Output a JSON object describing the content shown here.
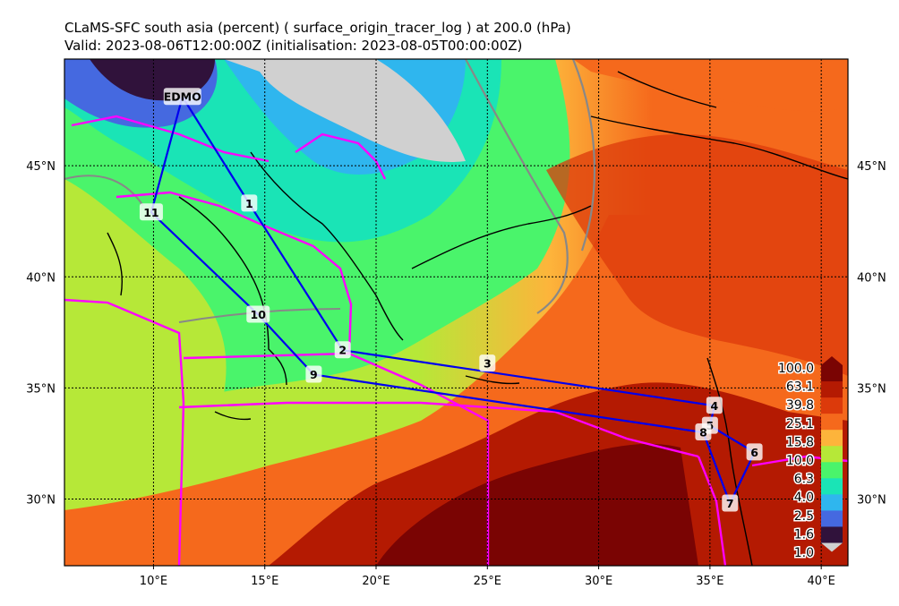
{
  "title_line1": "CLaMS-SFC south asia (percent) ( surface_origin_tracer_log ) at 200.0 (hPa)",
  "title_line2": "Valid: 2023-08-06T12:00:00Z (initialisation: 2023-08-05T00:00:00Z)",
  "x_ticks": [
    {
      "lon": 10,
      "label": "10°E"
    },
    {
      "lon": 15,
      "label": "15°E"
    },
    {
      "lon": 20,
      "label": "20°E"
    },
    {
      "lon": 25,
      "label": "25°E"
    },
    {
      "lon": 30,
      "label": "30°E"
    },
    {
      "lon": 35,
      "label": "35°E"
    },
    {
      "lon": 40,
      "label": "40°E"
    }
  ],
  "y_ticks": [
    {
      "lat": 45,
      "label": "45°N"
    },
    {
      "lat": 40,
      "label": "40°N"
    },
    {
      "lat": 35,
      "label": "35°N"
    },
    {
      "lat": 30,
      "label": "30°N"
    }
  ],
  "colorbar": {
    "levels": [
      "100.0",
      "63.1",
      "39.8",
      "25.1",
      "15.8",
      "10.0",
      "6.3",
      "4.0",
      "2.5",
      "1.6",
      "1.0"
    ],
    "colors": [
      "#7a0403",
      "#b41a02",
      "#dc3a0b",
      "#f5691c",
      "#fdb43b",
      "#b6e838",
      "#4af46b",
      "#1ae4b6",
      "#2fb6ee",
      "#4569e0",
      "#30123b"
    ],
    "under_color": "#d0d0d0"
  },
  "flight_route": {
    "waypoints": [
      {
        "label": "EDMO",
        "lon": 11.3,
        "lat": 48.1
      },
      {
        "label": "1",
        "lon": 14.3,
        "lat": 43.3
      },
      {
        "label": "2",
        "lon": 18.5,
        "lat": 36.7
      },
      {
        "label": "3",
        "lon": 25.0,
        "lat": 36.1
      },
      {
        "label": "4",
        "lon": 35.2,
        "lat": 34.2
      },
      {
        "label": "5",
        "lon": 35.0,
        "lat": 33.3
      },
      {
        "label": "6",
        "lon": 37.0,
        "lat": 32.1
      },
      {
        "label": "7",
        "lon": 35.9,
        "lat": 29.8
      },
      {
        "label": "8",
        "lon": 34.7,
        "lat": 33.0
      },
      {
        "label": "9",
        "lon": 17.2,
        "lat": 35.6
      },
      {
        "label": "10",
        "lon": 14.7,
        "lat": 38.3
      },
      {
        "label": "11",
        "lon": 9.9,
        "lat": 42.9
      }
    ],
    "route_order": [
      "EDMO",
      "1",
      "2",
      "4",
      "5",
      "6",
      "7",
      "8",
      "9",
      "10",
      "11",
      "EDMO"
    ],
    "route_color": "#0000ee"
  },
  "map_extent": {
    "lon_min": 6.0,
    "lon_max": 41.2,
    "lat_min": 27.0,
    "lat_max": 49.8
  }
}
